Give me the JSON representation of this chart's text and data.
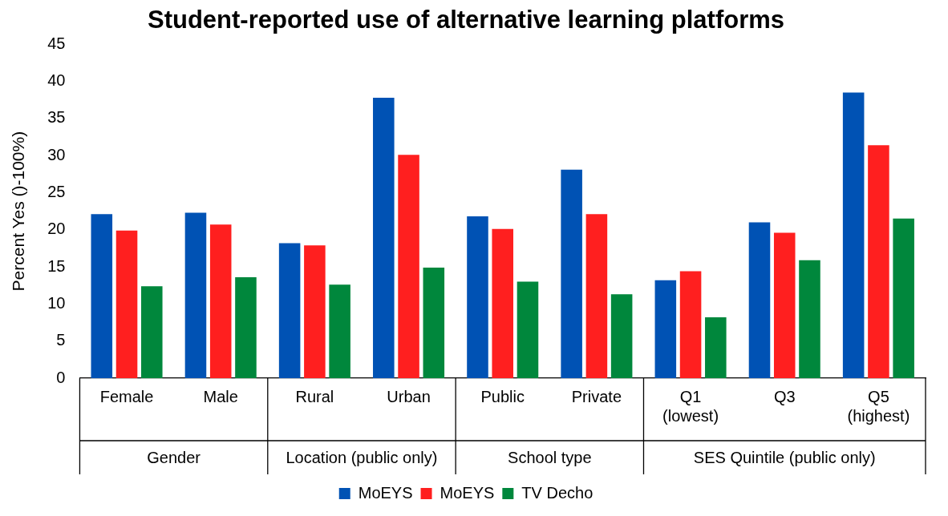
{
  "chart_data": {
    "type": "bar",
    "title": "Student-reported use of alternative learning platforms",
    "ylabel": "Percent Yes ()-100%)",
    "categories": [
      "Female",
      "Male",
      "Rural",
      "Urban",
      "Public",
      "Private",
      "Q1\n(lowest)",
      "Q3",
      "Q5\n(highest)"
    ],
    "series": [
      {
        "name": "MoEYS",
        "color": "#0052b4",
        "values": [
          22.1,
          22.3,
          18.2,
          37.8,
          21.8,
          28.1,
          13.2,
          21.0,
          38.5
        ]
      },
      {
        "name": "MoEYS",
        "color": "#ff1f1f",
        "values": [
          19.9,
          20.7,
          17.9,
          30.1,
          20.1,
          22.1,
          14.4,
          19.6,
          31.4
        ]
      },
      {
        "name": "TV Decho",
        "color": "#00873c",
        "values": [
          12.4,
          13.6,
          12.6,
          14.9,
          13.0,
          11.3,
          8.2,
          15.9,
          21.5
        ]
      }
    ],
    "ylim": [
      0,
      45
    ],
    "yticks": [
      0,
      5,
      10,
      15,
      20,
      25,
      30,
      35,
      40,
      45
    ],
    "grid": false,
    "legend": "bottom",
    "annotations": [
      "Gender",
      "Location (public only)",
      "School type",
      "SES Quintile (public only)"
    ]
  }
}
